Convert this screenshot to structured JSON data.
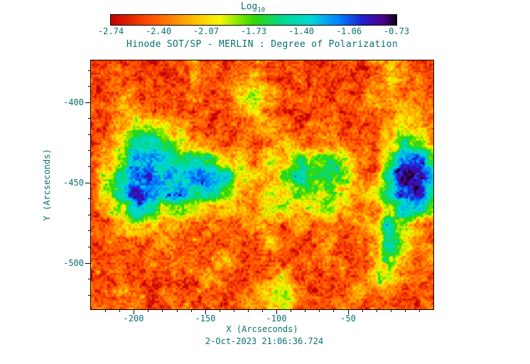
{
  "chart_data": {
    "type": "heatmap",
    "title": "Hinode SOT/SP - MERLIN : Degree of Polarization",
    "xlabel": "X (Arcseconds)",
    "ylabel": "Y (Arcseconds)",
    "timestamp": "2-Oct-2023 21:06:36.724",
    "text_color": "#0a7070",
    "xlim": [
      -230,
      10
    ],
    "ylim": [
      -529,
      -374
    ],
    "xticks": [
      -200,
      -150,
      -100,
      -50
    ],
    "xtick_labels": [
      "-200",
      "-150",
      "-100",
      "-50"
    ],
    "yticks": [
      -400,
      -450,
      -500
    ],
    "ytick_labels": [
      "-400",
      "-450",
      "-500"
    ],
    "minor_tick_step": 10,
    "colorbar": {
      "label_main": "Log",
      "label_sub": "10",
      "ticks": [
        "-2.74",
        "-2.40",
        "-2.07",
        "-1.73",
        "-1.40",
        "-1.06",
        "-0.73"
      ],
      "vmin": -2.74,
      "vmax": -0.73
    },
    "colormap": {
      "positions": [
        0,
        0.13,
        0.25,
        0.38,
        0.5,
        0.6,
        0.7,
        0.8,
        0.88,
        0.95,
        1
      ],
      "colors": [
        "#c40000",
        "#ff4a00",
        "#ffa000",
        "#f8f800",
        "#30d800",
        "#00d890",
        "#00d8d8",
        "#0080ff",
        "#2020d0",
        "#500090",
        "#140020"
      ]
    },
    "grid": {
      "nx": 24,
      "ny": 16,
      "values": [
        [
          -2.5,
          -2.55,
          -2.45,
          -2.5,
          -2.55,
          -2.5,
          -2.45,
          -2.35,
          -2.5,
          -2.55,
          -2.45,
          -2.5,
          -2.55,
          -2.5,
          -2.45,
          -2.55,
          -2.5,
          -2.45,
          -2.5,
          -2.4,
          -2.1,
          -2.3,
          -2.5,
          -2.45
        ],
        [
          -2.55,
          -2.5,
          -2.4,
          -2.45,
          -2.5,
          -2.55,
          -2.5,
          -2.3,
          -2.45,
          -2.5,
          -2.4,
          -2.2,
          -2.45,
          -2.5,
          -2.55,
          -2.5,
          -2.45,
          -2.5,
          -2.55,
          -2.45,
          -2.0,
          -2.2,
          -2.4,
          -2.5
        ],
        [
          -2.5,
          -2.45,
          -2.35,
          -2.4,
          -2.5,
          -2.45,
          -2.5,
          -2.4,
          -2.5,
          -2.45,
          -2.1,
          -1.9,
          -2.1,
          -2.4,
          -2.5,
          -2.45,
          -2.5,
          -2.45,
          -2.5,
          -2.2,
          -2.3,
          -2.4,
          -2.3,
          -2.45
        ],
        [
          -2.45,
          -2.5,
          -2.2,
          -2.25,
          -2.4,
          -2.5,
          -2.45,
          -2.5,
          -2.45,
          -2.5,
          -2.3,
          -2.0,
          -2.3,
          -2.5,
          -2.45,
          -2.5,
          -2.45,
          -2.5,
          -2.4,
          -2.45,
          -2.3,
          -2.1,
          -2.2,
          -2.4
        ],
        [
          -2.5,
          -2.45,
          -2.3,
          -1.9,
          -1.8,
          -2.0,
          -2.2,
          -2.4,
          -2.5,
          -2.45,
          -2.5,
          -2.3,
          -2.2,
          -2.45,
          -2.5,
          -2.4,
          -2.3,
          -2.5,
          -2.45,
          -2.5,
          -2.2,
          -2.0,
          -2.0,
          -2.3
        ],
        [
          -2.5,
          -2.4,
          -2.0,
          -1.5,
          -1.4,
          -1.7,
          -1.9,
          -2.2,
          -2.35,
          -2.5,
          -2.4,
          -2.45,
          -2.3,
          -2.1,
          -2.3,
          -2.45,
          -2.4,
          -2.35,
          -2.5,
          -2.45,
          -2.1,
          -1.6,
          -1.8,
          -2.2
        ],
        [
          -2.45,
          -2.2,
          -1.8,
          -1.2,
          -1.1,
          -1.3,
          -1.6,
          -1.4,
          -1.7,
          -2.1,
          -2.0,
          -2.3,
          -1.9,
          -2.2,
          -1.6,
          -1.8,
          -1.7,
          -1.9,
          -2.3,
          -2.4,
          -1.8,
          -1.1,
          -1.0,
          -1.6
        ],
        [
          -2.5,
          -2.1,
          -1.6,
          -1.1,
          -1.05,
          -1.2,
          -1.3,
          -1.15,
          -1.2,
          -1.3,
          -1.9,
          -2.0,
          -2.2,
          -1.7,
          -1.5,
          -1.7,
          -1.6,
          -1.8,
          -2.2,
          -2.35,
          -1.5,
          -0.85,
          -0.8,
          -1.3
        ],
        [
          -2.45,
          -1.9,
          -1.4,
          -0.95,
          -1.1,
          -1.4,
          -1.2,
          -1.5,
          -1.3,
          -1.8,
          -2.2,
          -2.4,
          -1.9,
          -2.1,
          -1.7,
          -1.9,
          -1.8,
          -2.0,
          -2.3,
          -2.0,
          -1.6,
          -0.95,
          -0.9,
          -1.5
        ],
        [
          -2.5,
          -2.3,
          -1.8,
          -1.3,
          -1.5,
          -1.9,
          -1.7,
          -2.0,
          -2.2,
          -2.1,
          -2.1,
          -2.4,
          -1.9,
          -1.9,
          -2.2,
          -2.0,
          -1.9,
          -2.1,
          -2.4,
          -2.3,
          -1.9,
          -1.4,
          -1.4,
          -1.9
        ],
        [
          -2.45,
          -2.5,
          -2.2,
          -2.0,
          -2.1,
          -2.3,
          -2.2,
          -2.4,
          -2.3,
          -2.45,
          -2.4,
          -2.2,
          -2.35,
          -2.5,
          -2.2,
          -2.45,
          -2.4,
          -2.5,
          -2.35,
          -2.1,
          -1.5,
          -1.9,
          -2.2,
          -2.4
        ],
        [
          -2.5,
          -2.45,
          -2.4,
          -2.3,
          -2.45,
          -2.2,
          -2.5,
          -2.45,
          -2.4,
          -2.5,
          -2.45,
          -2.5,
          -2.1,
          -2.4,
          -2.5,
          -2.45,
          -2.2,
          -2.5,
          -2.45,
          -2.3,
          -1.4,
          -1.8,
          -2.3,
          -2.45
        ],
        [
          -2.45,
          -2.5,
          -2.45,
          -2.5,
          -2.4,
          -2.5,
          -2.45,
          -2.4,
          -2.5,
          -2.2,
          -2.5,
          -2.45,
          -2.4,
          -2.5,
          -2.45,
          -2.5,
          -2.4,
          -2.45,
          -2.5,
          -2.3,
          -1.7,
          -2.1,
          -2.4,
          -2.2
        ],
        [
          -2.5,
          -2.45,
          -2.4,
          -2.5,
          -2.45,
          -2.5,
          -2.4,
          -2.45,
          -2.1,
          -2.4,
          -2.5,
          -2.45,
          -2.3,
          -2.2,
          -2.5,
          -2.45,
          -2.5,
          -2.4,
          -2.45,
          -2.0,
          -1.9,
          -2.3,
          -2.45,
          -2.5
        ],
        [
          -2.45,
          -2.5,
          -2.3,
          -2.45,
          -2.5,
          -2.4,
          -2.5,
          -2.45,
          -2.4,
          -2.5,
          -2.45,
          -2.3,
          -2.0,
          -1.9,
          -2.3,
          -2.5,
          -2.45,
          -2.4,
          -2.2,
          -2.4,
          -2.3,
          -2.45,
          -2.5,
          -2.45
        ],
        [
          -2.4,
          -2.45,
          -2.5,
          -2.4,
          -2.5,
          -2.45,
          -2.4,
          -2.5,
          -2.45,
          -2.5,
          -2.4,
          -2.3,
          -2.1,
          -2.0,
          -2.4,
          -2.45,
          -2.5,
          -2.3,
          -2.45,
          -2.5,
          -2.4,
          -2.5,
          -2.45,
          -2.4
        ]
      ]
    },
    "noise": {
      "seed": 1337,
      "fine_scale": 3,
      "fine_amp": 0.3,
      "med_scale": 9,
      "med_amp": 0.26
    }
  }
}
